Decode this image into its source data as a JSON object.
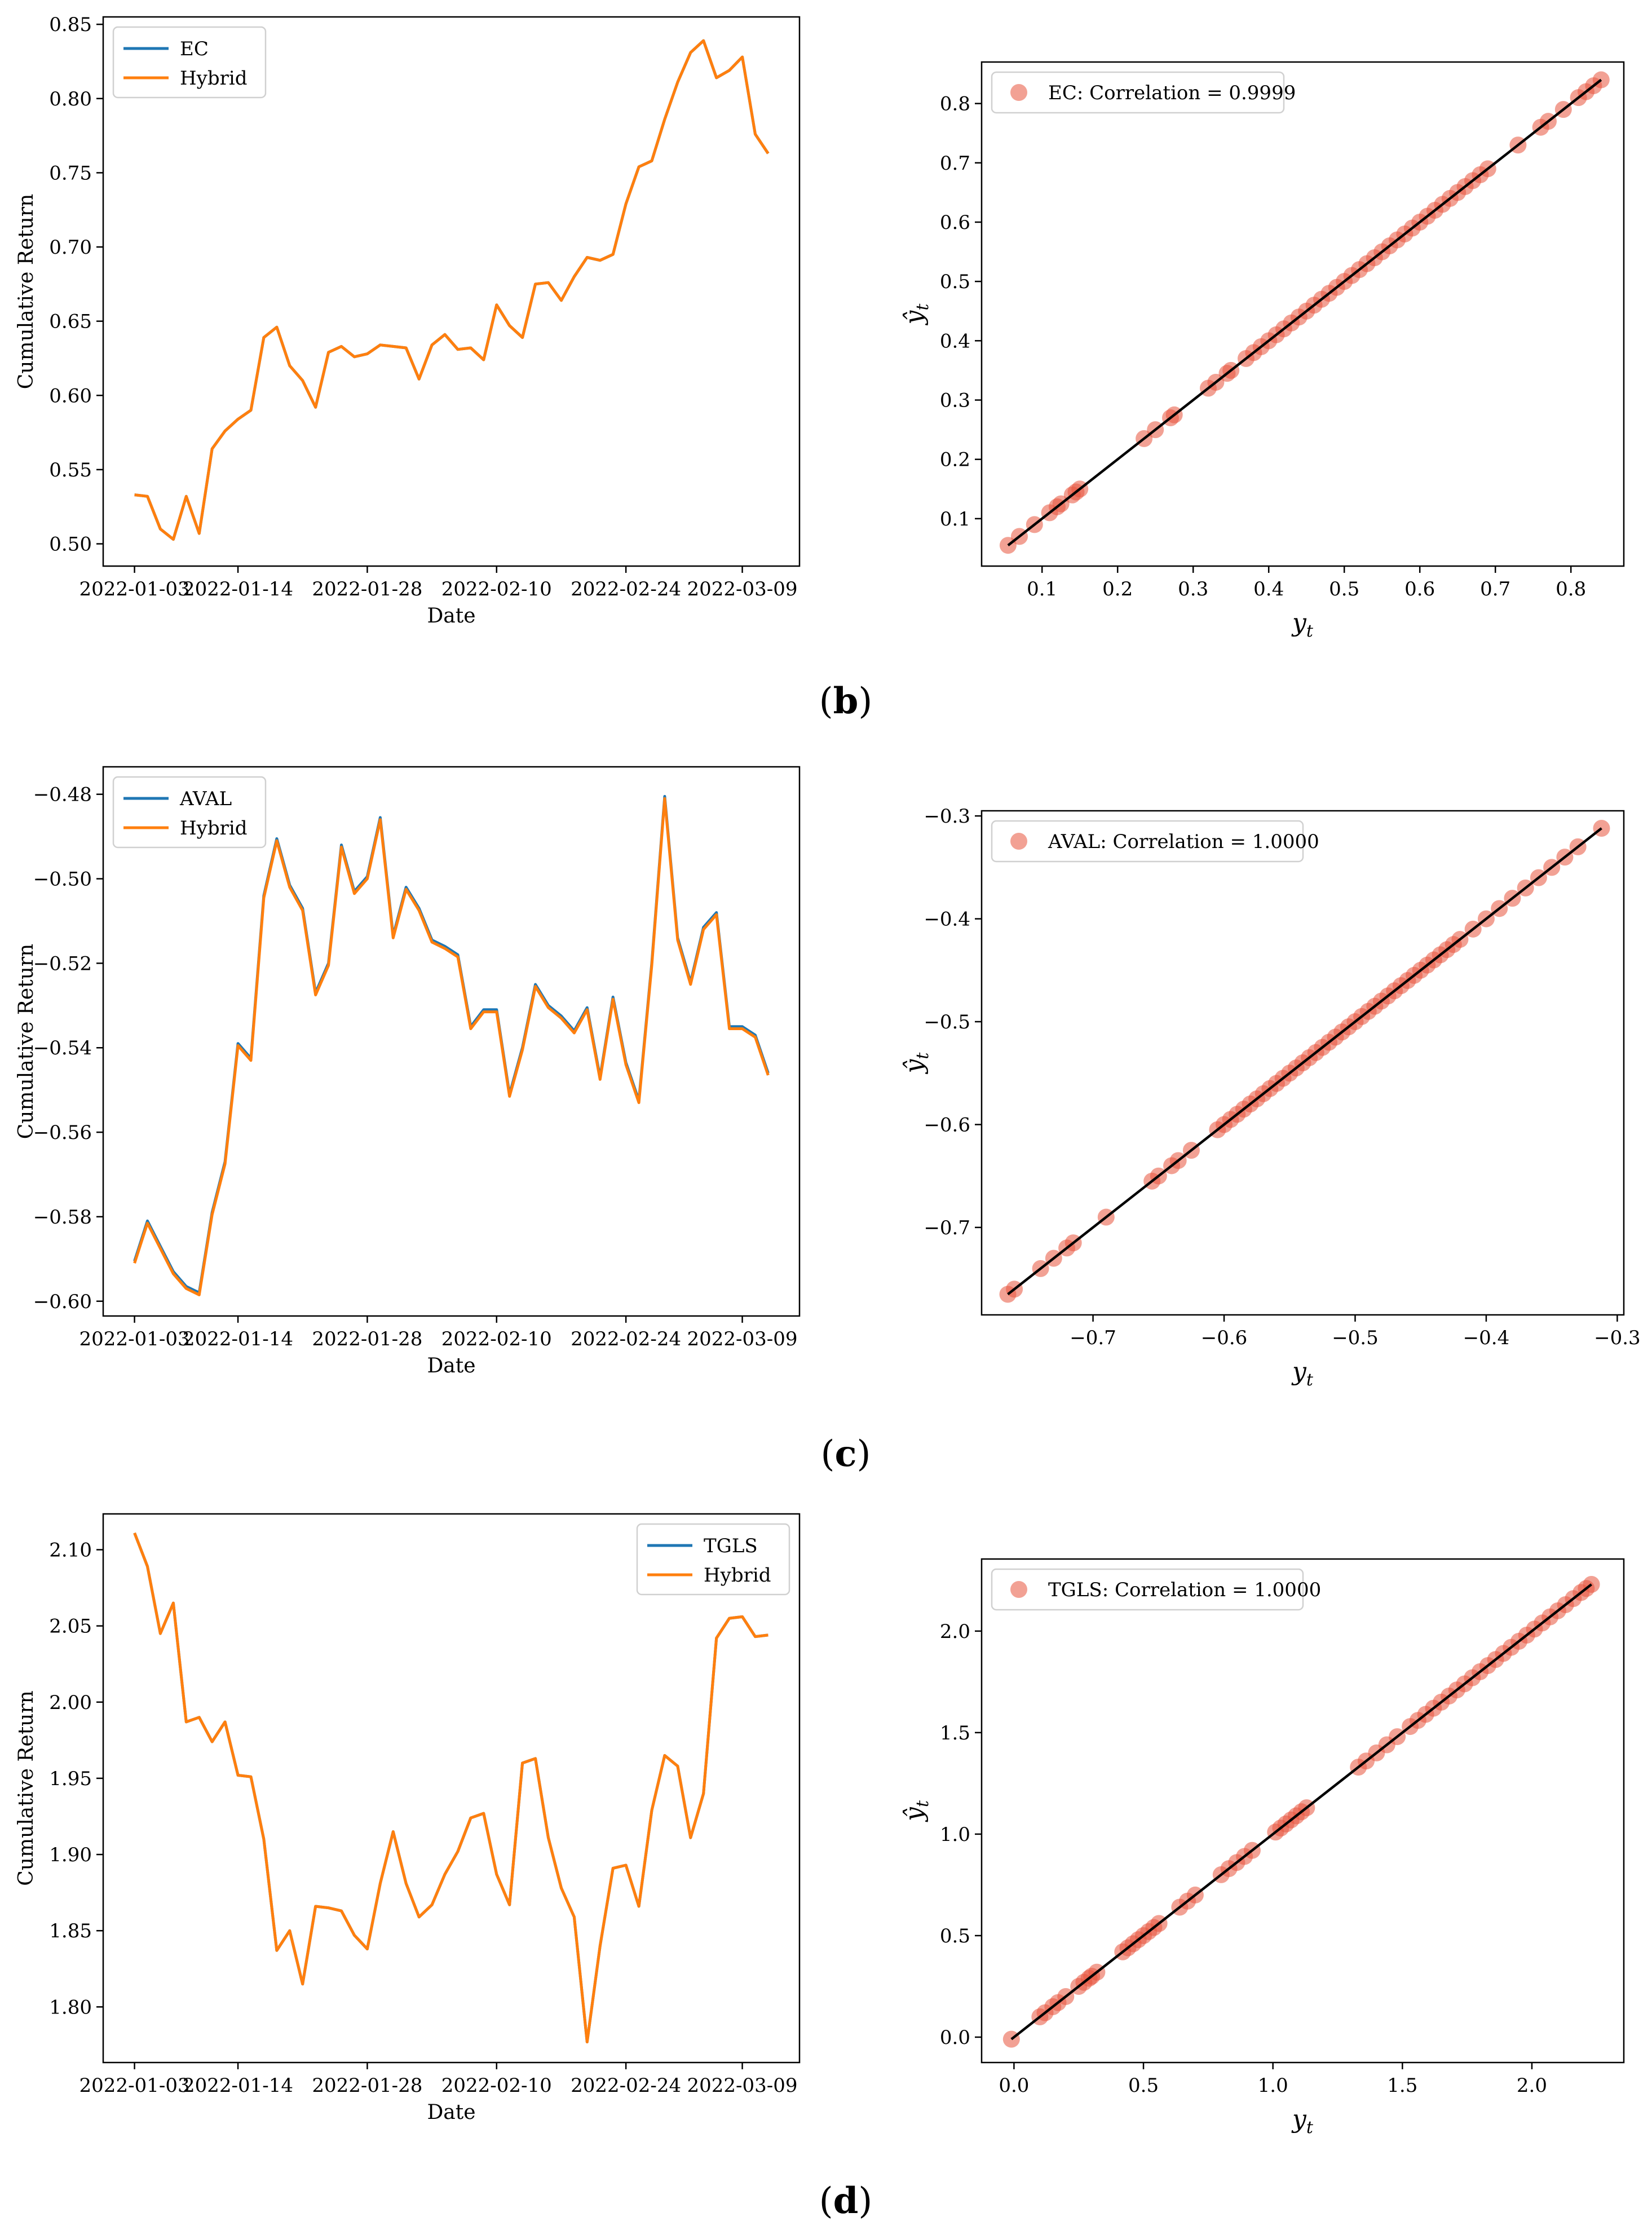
{
  "panels": [
    {
      "label": "(b)",
      "label_letter": "b",
      "line": {
        "type": "line",
        "xlabel": "Date",
        "ylabel": "Cumulative Return",
        "ylim": [
          0.485,
          0.855
        ],
        "yticks": [
          "0.50",
          "0.55",
          "0.60",
          "0.65",
          "0.70",
          "0.75",
          "0.80",
          "0.85"
        ],
        "ytick_values": [
          0.5,
          0.55,
          0.6,
          0.65,
          0.7,
          0.75,
          0.8,
          0.85
        ],
        "xticks": [
          "2022-01-03",
          "2022-01-14",
          "2022-01-28",
          "2022-02-10",
          "2022-02-24",
          "2022-03-09"
        ],
        "legend": [
          "EC",
          "Hybrid"
        ],
        "legend_position": "upper-left",
        "series": [
          {
            "name": "EC",
            "color": "#1f77b4",
            "values": [
              0.533,
              0.532,
              0.51,
              0.503,
              0.532,
              0.507,
              0.564,
              0.576,
              0.584,
              0.59,
              0.639,
              0.646,
              0.62,
              0.61,
              0.592,
              0.629,
              0.633,
              0.626,
              0.628,
              0.634,
              0.633,
              0.632,
              0.611,
              0.634,
              0.641,
              0.631,
              0.632,
              0.624,
              0.661,
              0.647,
              0.639,
              0.675,
              0.676,
              0.664,
              0.68,
              0.693,
              0.691,
              0.695,
              0.729,
              0.754,
              0.758,
              0.786,
              0.811,
              0.831,
              0.839,
              0.814,
              0.819,
              0.828,
              0.776,
              0.763
            ]
          },
          {
            "name": "Hybrid",
            "color": "#ff7f0e",
            "values": [
              0.533,
              0.532,
              0.51,
              0.503,
              0.532,
              0.507,
              0.564,
              0.576,
              0.584,
              0.59,
              0.639,
              0.646,
              0.62,
              0.61,
              0.592,
              0.629,
              0.633,
              0.626,
              0.628,
              0.634,
              0.633,
              0.632,
              0.611,
              0.634,
              0.641,
              0.631,
              0.632,
              0.624,
              0.661,
              0.647,
              0.639,
              0.675,
              0.676,
              0.664,
              0.68,
              0.693,
              0.691,
              0.695,
              0.729,
              0.754,
              0.758,
              0.786,
              0.811,
              0.831,
              0.839,
              0.814,
              0.819,
              0.828,
              0.776,
              0.763
            ]
          }
        ]
      },
      "scatter": {
        "type": "scatter",
        "xlabel": "y",
        "ylabel": "ŷ",
        "subscript": "t",
        "xlim": [
          0.02,
          0.87
        ],
        "ylim": [
          0.02,
          0.87
        ],
        "xticks": [
          "0.1",
          "0.2",
          "0.3",
          "0.4",
          "0.5",
          "0.6",
          "0.7",
          "0.8"
        ],
        "xtick_values": [
          0.1,
          0.2,
          0.3,
          0.4,
          0.5,
          0.6,
          0.7,
          0.8
        ],
        "yticks": [
          "0.1",
          "0.2",
          "0.3",
          "0.4",
          "0.5",
          "0.6",
          "0.7",
          "0.8"
        ],
        "ytick_values": [
          0.1,
          0.2,
          0.3,
          0.4,
          0.5,
          0.6,
          0.7,
          0.8
        ],
        "legend": "EC: Correlation = 0.9999",
        "point_color": "#e8533d",
        "line_color": "#000000",
        "fit_line": [
          [
            0.055,
            0.055
          ],
          [
            0.84,
            0.84
          ]
        ],
        "points": [
          0.055,
          0.07,
          0.09,
          0.11,
          0.12,
          0.125,
          0.14,
          0.145,
          0.15,
          0.235,
          0.25,
          0.27,
          0.275,
          0.32,
          0.33,
          0.345,
          0.35,
          0.37,
          0.38,
          0.39,
          0.4,
          0.41,
          0.42,
          0.43,
          0.44,
          0.45,
          0.46,
          0.47,
          0.48,
          0.49,
          0.5,
          0.51,
          0.52,
          0.53,
          0.54,
          0.55,
          0.56,
          0.57,
          0.58,
          0.59,
          0.6,
          0.61,
          0.62,
          0.63,
          0.64,
          0.65,
          0.66,
          0.67,
          0.68,
          0.69,
          0.73,
          0.76,
          0.77,
          0.79,
          0.81,
          0.82,
          0.83,
          0.84
        ]
      }
    },
    {
      "label": "(c)",
      "label_letter": "c",
      "line": {
        "type": "line",
        "xlabel": "Date",
        "ylabel": "Cumulative Return",
        "ylim": [
          -0.6035,
          -0.4735
        ],
        "yticks": [
          "−0.60",
          "−0.58",
          "−0.56",
          "−0.54",
          "−0.52",
          "−0.50",
          "−0.48"
        ],
        "ytick_values": [
          -0.6,
          -0.58,
          -0.56,
          -0.54,
          -0.52,
          -0.5,
          -0.48
        ],
        "xticks": [
          "2022-01-03",
          "2022-01-14",
          "2022-01-28",
          "2022-02-10",
          "2022-02-24",
          "2022-03-09"
        ],
        "legend": [
          "AVAL",
          "Hybrid"
        ],
        "legend_position": "upper-left",
        "series": [
          {
            "name": "AVAL",
            "color": "#1f77b4",
            "values": [
              -0.5905,
              -0.581,
              -0.587,
              -0.593,
              -0.5965,
              -0.598,
              -0.579,
              -0.567,
              -0.539,
              -0.5425,
              -0.504,
              -0.4905,
              -0.5015,
              -0.507,
              -0.527,
              -0.52,
              -0.492,
              -0.503,
              -0.4995,
              -0.4855,
              -0.5135,
              -0.502,
              -0.507,
              -0.5145,
              -0.516,
              -0.518,
              -0.535,
              -0.531,
              -0.531,
              -0.551,
              -0.54,
              -0.525,
              -0.53,
              -0.5325,
              -0.536,
              -0.5305,
              -0.547,
              -0.528,
              -0.5435,
              -0.5525,
              -0.52,
              -0.4805,
              -0.514,
              -0.5245,
              -0.5115,
              -0.508,
              -0.535,
              -0.535,
              -0.537,
              -0.546
            ]
          },
          {
            "name": "Hybrid",
            "color": "#ff7f0e",
            "values": [
              -0.591,
              -0.5815,
              -0.5875,
              -0.5935,
              -0.597,
              -0.5985,
              -0.5795,
              -0.5675,
              -0.5395,
              -0.543,
              -0.5045,
              -0.491,
              -0.502,
              -0.5075,
              -0.5275,
              -0.5205,
              -0.4925,
              -0.5035,
              -0.5,
              -0.486,
              -0.514,
              -0.5025,
              -0.5075,
              -0.515,
              -0.5165,
              -0.5185,
              -0.5355,
              -0.5315,
              -0.5315,
              -0.5515,
              -0.5405,
              -0.5255,
              -0.5305,
              -0.533,
              -0.5365,
              -0.531,
              -0.5475,
              -0.5285,
              -0.544,
              -0.553,
              -0.5205,
              -0.481,
              -0.5145,
              -0.525,
              -0.512,
              -0.5085,
              -0.5355,
              -0.5355,
              -0.5375,
              -0.5465
            ]
          }
        ]
      },
      "scatter": {
        "type": "scatter",
        "xlabel": "y",
        "ylabel": "ŷ",
        "subscript": "t",
        "xlim": [
          -0.785,
          -0.295
        ],
        "ylim": [
          -0.785,
          -0.295
        ],
        "xticks": [
          "−0.7",
          "−0.6",
          "−0.5",
          "−0.4",
          "−0.3"
        ],
        "xtick_values": [
          -0.7,
          -0.6,
          -0.5,
          -0.4,
          -0.3
        ],
        "yticks": [
          "−0.7",
          "−0.6",
          "−0.5",
          "−0.4",
          "−0.3"
        ],
        "ytick_values": [
          -0.7,
          -0.6,
          -0.5,
          -0.4,
          -0.3
        ],
        "legend": "AVAL: Correlation = 1.0000",
        "point_color": "#e8533d",
        "line_color": "#000000",
        "fit_line": [
          [
            -0.765,
            -0.765
          ],
          [
            -0.312,
            -0.312
          ]
        ],
        "points": [
          -0.765,
          -0.76,
          -0.74,
          -0.73,
          -0.72,
          -0.715,
          -0.69,
          -0.655,
          -0.65,
          -0.64,
          -0.635,
          -0.625,
          -0.605,
          -0.6,
          -0.595,
          -0.59,
          -0.585,
          -0.58,
          -0.575,
          -0.57,
          -0.565,
          -0.56,
          -0.555,
          -0.55,
          -0.545,
          -0.54,
          -0.535,
          -0.53,
          -0.525,
          -0.52,
          -0.515,
          -0.51,
          -0.505,
          -0.5,
          -0.495,
          -0.49,
          -0.485,
          -0.48,
          -0.475,
          -0.47,
          -0.465,
          -0.46,
          -0.455,
          -0.45,
          -0.445,
          -0.44,
          -0.435,
          -0.43,
          -0.425,
          -0.42,
          -0.41,
          -0.4,
          -0.39,
          -0.38,
          -0.37,
          -0.36,
          -0.35,
          -0.34,
          -0.33,
          -0.312
        ]
      }
    },
    {
      "label": "(d)",
      "label_letter": "d",
      "line": {
        "type": "line",
        "xlabel": "Date",
        "ylabel": "Cumulative Return",
        "ylim": [
          1.7635,
          2.1235
        ],
        "yticks": [
          "1.80",
          "1.85",
          "1.90",
          "1.95",
          "2.00",
          "2.05",
          "2.10"
        ],
        "ytick_values": [
          1.8,
          1.85,
          1.9,
          1.95,
          2.0,
          2.05,
          2.1
        ],
        "xticks": [
          "2022-01-03",
          "2022-01-14",
          "2022-01-28",
          "2022-02-10",
          "2022-02-24",
          "2022-03-09"
        ],
        "legend": [
          "TGLS",
          "Hybrid"
        ],
        "legend_position": "upper-right",
        "series": [
          {
            "name": "TGLS",
            "color": "#1f77b4",
            "values": [
              2.111,
              2.089,
              2.045,
              2.065,
              1.987,
              1.99,
              1.974,
              1.987,
              1.952,
              1.951,
              1.91,
              1.837,
              1.85,
              1.815,
              1.866,
              1.865,
              1.863,
              1.847,
              1.838,
              1.881,
              1.915,
              1.881,
              1.859,
              1.867,
              1.887,
              1.902,
              1.924,
              1.927,
              1.887,
              1.867,
              1.96,
              1.963,
              1.911,
              1.878,
              1.859,
              1.777,
              1.84,
              1.891,
              1.893,
              1.866,
              1.929,
              1.965,
              1.958,
              1.911,
              1.94,
              2.042,
              2.055,
              2.056,
              2.043,
              2.044
            ]
          },
          {
            "name": "Hybrid",
            "color": "#ff7f0e",
            "values": [
              2.111,
              2.089,
              2.045,
              2.065,
              1.987,
              1.99,
              1.974,
              1.987,
              1.952,
              1.951,
              1.91,
              1.837,
              1.85,
              1.815,
              1.866,
              1.865,
              1.863,
              1.847,
              1.838,
              1.881,
              1.915,
              1.881,
              1.859,
              1.867,
              1.887,
              1.902,
              1.924,
              1.927,
              1.887,
              1.867,
              1.96,
              1.963,
              1.911,
              1.878,
              1.859,
              1.777,
              1.84,
              1.891,
              1.893,
              1.866,
              1.929,
              1.965,
              1.958,
              1.911,
              1.94,
              2.042,
              2.055,
              2.056,
              2.043,
              2.044
            ]
          }
        ]
      },
      "scatter": {
        "type": "scatter",
        "xlabel": "y",
        "ylabel": "ŷ",
        "subscript": "t",
        "xlim": [
          -0.125,
          2.355
        ],
        "ylim": [
          -0.125,
          2.355
        ],
        "xticks": [
          "0.0",
          "0.5",
          "1.0",
          "1.5",
          "2.0"
        ],
        "xtick_values": [
          0.0,
          0.5,
          1.0,
          1.5,
          2.0
        ],
        "yticks": [
          "0.0",
          "0.5",
          "1.0",
          "1.5",
          "2.0"
        ],
        "ytick_values": [
          0.0,
          0.5,
          1.0,
          1.5,
          2.0
        ],
        "legend": "TGLS: Correlation = 1.0000",
        "point_color": "#e8533d",
        "line_color": "#000000",
        "fit_line": [
          [
            -0.01,
            -0.01
          ],
          [
            2.23,
            2.23
          ]
        ],
        "points": [
          -0.01,
          0.1,
          0.12,
          0.15,
          0.17,
          0.2,
          0.25,
          0.27,
          0.29,
          0.3,
          0.32,
          0.42,
          0.44,
          0.46,
          0.48,
          0.5,
          0.52,
          0.54,
          0.56,
          0.64,
          0.67,
          0.7,
          0.8,
          0.83,
          0.86,
          0.89,
          0.92,
          1.01,
          1.03,
          1.05,
          1.07,
          1.09,
          1.11,
          1.13,
          1.33,
          1.36,
          1.4,
          1.44,
          1.48,
          1.53,
          1.56,
          1.59,
          1.62,
          1.65,
          1.68,
          1.71,
          1.74,
          1.77,
          1.8,
          1.83,
          1.86,
          1.89,
          1.92,
          1.95,
          1.98,
          2.01,
          2.04,
          2.07,
          2.1,
          2.13,
          2.16,
          2.19,
          2.21,
          2.23
        ]
      }
    }
  ]
}
